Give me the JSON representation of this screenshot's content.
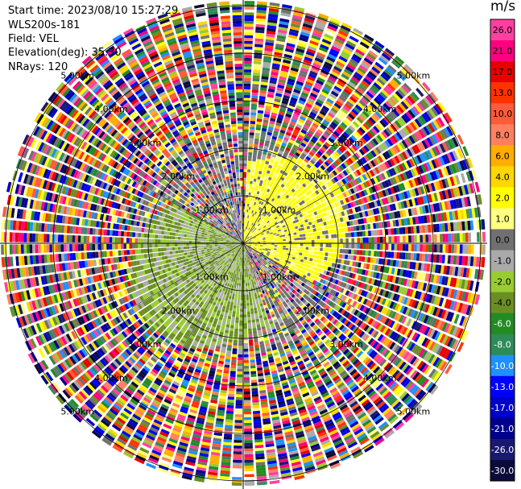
{
  "header": {
    "start_time": "Start time: 2023/08/10 15:27:29",
    "instrument": "WLS200s-181",
    "field": "Field: VEL",
    "elevation": "Elevation(deg): 35.30",
    "nrays": "NRays: 120"
  },
  "chart_data": {
    "type": "heatmap",
    "projection": "polar-ppi",
    "range_rings_km": [
      1.0,
      2.0,
      3.0,
      4.0,
      5.0
    ],
    "ring_labels": [
      "1.00km",
      "2.00km",
      "3.00km",
      "4.00km",
      "5.00km"
    ],
    "n_rays": 120,
    "max_range_km": 5.1,
    "colorbar": {
      "unit": "m/s",
      "ticks": [
        "26.0",
        "21.0",
        "17.0",
        "13.0",
        "10.0",
        "8.0",
        "6.0",
        "4.0",
        "2.0",
        "1.0",
        "0.0",
        "-1.0",
        "-2.0",
        "-4.0",
        "-6.0",
        "-8.0",
        "-10.0",
        "-13.0",
        "-17.0",
        "-21.0",
        "-26.0",
        "-30.0"
      ],
      "colors": [
        "#ff40a0",
        "#ff0080",
        "#e80000",
        "#ff3300",
        "#ff5a3a",
        "#ff8060",
        "#ffae00",
        "#ffd700",
        "#ffff00",
        "#ffff80",
        "#707070",
        "#aaaaaa",
        "#99cc33",
        "#6b8e23",
        "#228b22",
        "#2e8b57",
        "#1e90ff",
        "#0000ff",
        "#0000cd",
        "#00008b",
        "#191970",
        "#0b0b3b"
      ]
    },
    "field_regions": [
      {
        "description": "positive",
        "center_deg": 60,
        "width_deg": 120,
        "max_km": 2.3,
        "value": 2.0
      },
      {
        "description": "negative",
        "center_deg": 230,
        "width_deg": 140,
        "max_km": 2.6,
        "value": -3.0
      }
    ]
  }
}
